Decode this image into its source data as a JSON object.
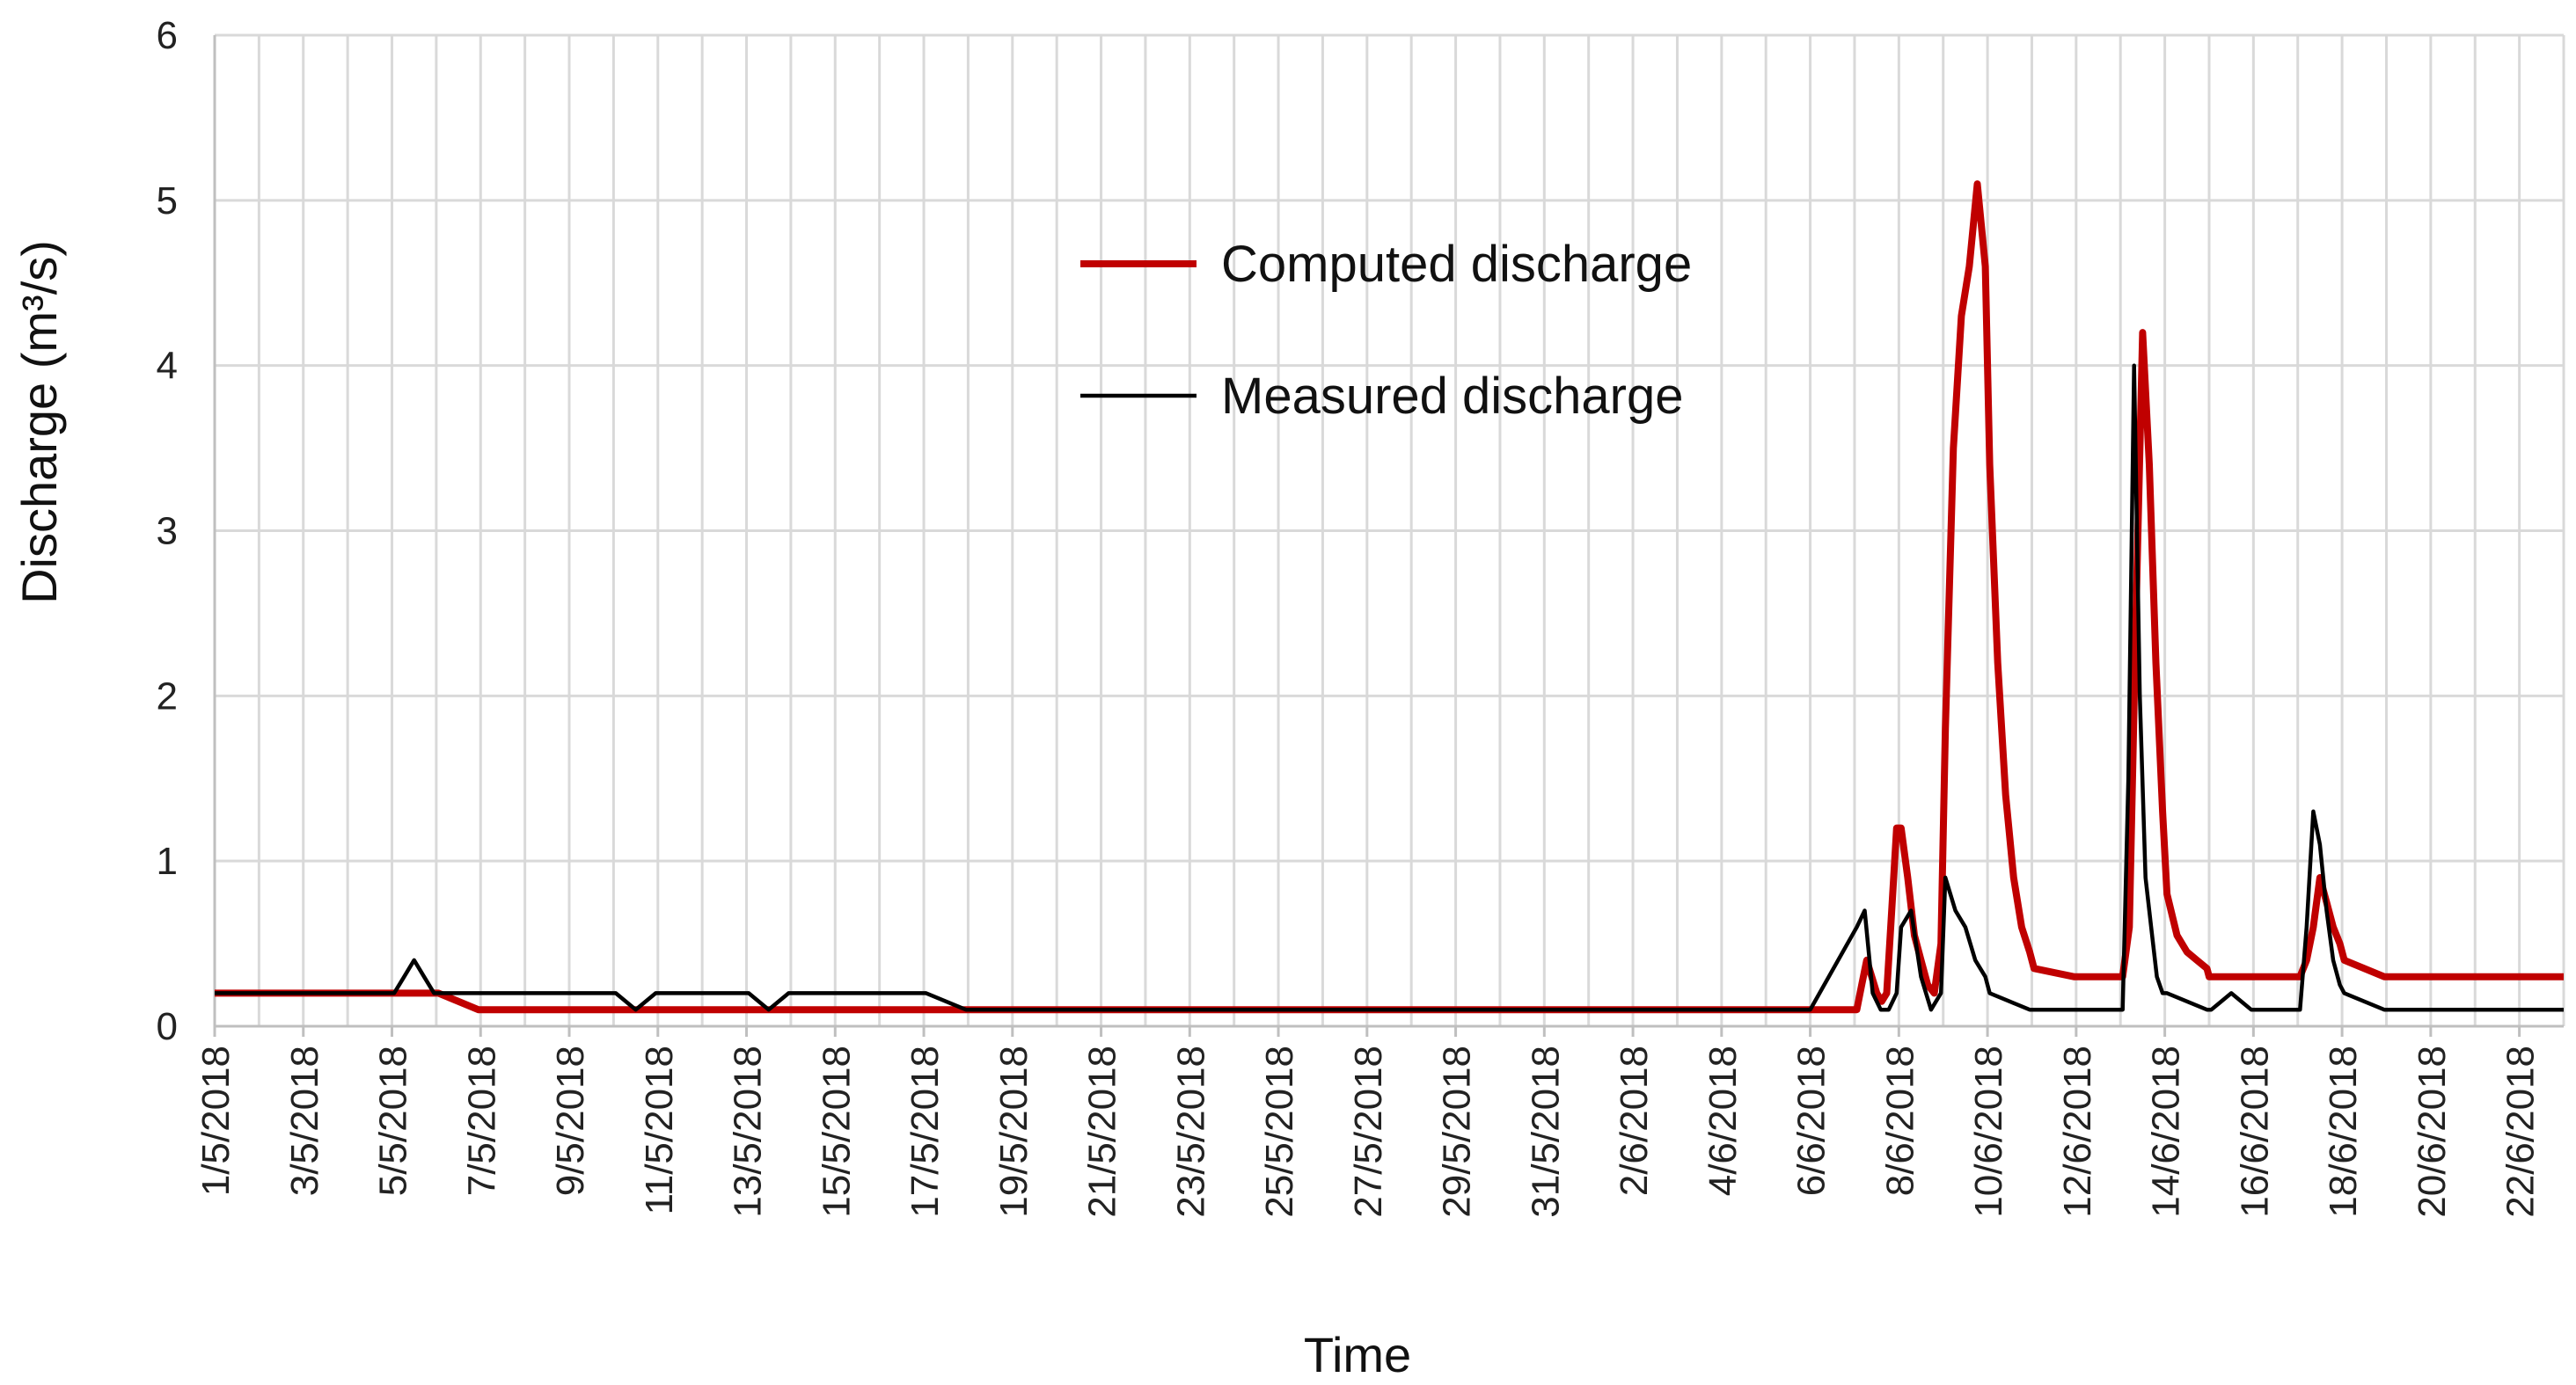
{
  "chart_data": {
    "type": "line",
    "xlabel": "Time",
    "ylabel": "Discharge (m³/s)",
    "ylim": [
      0,
      6
    ],
    "yticks": [
      "0",
      "1",
      "2",
      "3",
      "4",
      "5",
      "6"
    ],
    "xlim": [
      "1/5/2018",
      "23/6/2018"
    ],
    "xtick_labels": [
      "1/5/2018",
      "3/5/2018",
      "5/5/2018",
      "7/5/2018",
      "9/5/2018",
      "11/5/2018",
      "13/5/2018",
      "15/5/2018",
      "17/5/2018",
      "19/5/2018",
      "21/5/2018",
      "23/5/2018",
      "25/5/2018",
      "27/5/2018",
      "29/5/2018",
      "31/5/2018",
      "2/6/2018",
      "4/6/2018",
      "6/6/2018",
      "8/6/2018",
      "10/6/2018",
      "12/6/2018",
      "14/6/2018",
      "16/6/2018",
      "18/6/2018",
      "20/6/2018",
      "22/6/2018"
    ],
    "grid": true,
    "legend_position": "top-center",
    "series": [
      {
        "name": "Computed discharge",
        "color": "#c00000",
        "points": [
          [
            "1/5/2018",
            0.2
          ],
          [
            "6/5/2018",
            0.2
          ],
          [
            "6/5/2018",
            0.1
          ],
          [
            "6/6/2018",
            0.1
          ],
          [
            "7/6/2018",
            0.1
          ],
          [
            "7/6/2018",
            0.25
          ],
          [
            "7/6/2018",
            0.4
          ],
          [
            "7/6/2018",
            0.3
          ],
          [
            "7/6/2018",
            0.2
          ],
          [
            "7/6/2018",
            0.15
          ],
          [
            "7/6/2018",
            0.2
          ],
          [
            "7/6/2018",
            0.7
          ],
          [
            "7/6/2018",
            1.2
          ],
          [
            "8/6/2018",
            1.2
          ],
          [
            "8/6/2018",
            0.9
          ],
          [
            "8/6/2018",
            0.55
          ],
          [
            "8/6/2018",
            0.4
          ],
          [
            "8/6/2018",
            0.25
          ],
          [
            "8/6/2018",
            0.2
          ],
          [
            "8/6/2018",
            0.5
          ],
          [
            "9/6/2018",
            1.8
          ],
          [
            "9/6/2018",
            3.5
          ],
          [
            "9/6/2018",
            4.3
          ],
          [
            "9/6/2018",
            4.6
          ],
          [
            "9/6/2018",
            5.1
          ],
          [
            "9/6/2018",
            4.6
          ],
          [
            "10/6/2018",
            3.4
          ],
          [
            "10/6/2018",
            2.2
          ],
          [
            "10/6/2018",
            1.4
          ],
          [
            "10/6/2018",
            0.9
          ],
          [
            "10/6/2018",
            0.6
          ],
          [
            "10/6/2018",
            0.45
          ],
          [
            "11/6/2018",
            0.35
          ],
          [
            "11/6/2018",
            0.3
          ],
          [
            "12/6/2018",
            0.3
          ],
          [
            "13/6/2018",
            0.3
          ],
          [
            "13/6/2018",
            0.6
          ],
          [
            "13/6/2018",
            2.5
          ],
          [
            "13/6/2018",
            4.2
          ],
          [
            "13/6/2018",
            3.4
          ],
          [
            "13/6/2018",
            2.2
          ],
          [
            "13/6/2018",
            1.3
          ],
          [
            "14/6/2018",
            0.8
          ],
          [
            "14/6/2018",
            0.55
          ],
          [
            "14/6/2018",
            0.45
          ],
          [
            "14/6/2018",
            0.4
          ],
          [
            "14/6/2018",
            0.35
          ],
          [
            "15/6/2018",
            0.3
          ],
          [
            "17/6/2018",
            0.3
          ],
          [
            "17/6/2018",
            0.4
          ],
          [
            "17/6/2018",
            0.6
          ],
          [
            "17/6/2018",
            0.9
          ],
          [
            "17/6/2018",
            0.75
          ],
          [
            "17/6/2018",
            0.6
          ],
          [
            "17/6/2018",
            0.5
          ],
          [
            "18/6/2018",
            0.4
          ],
          [
            "18/6/2018",
            0.3
          ],
          [
            "23/6/2018",
            0.3
          ]
        ]
      },
      {
        "name": "Measured discharge",
        "color": "#000000",
        "points": [
          [
            "1/5/2018",
            0.2
          ],
          [
            "5/5/2018",
            0.2
          ],
          [
            "5/5/2018",
            0.3
          ],
          [
            "5/5/2018",
            0.4
          ],
          [
            "5/5/2018",
            0.3
          ],
          [
            "5/5/2018",
            0.2
          ],
          [
            "10/5/2018",
            0.2
          ],
          [
            "10/5/2018",
            0.1
          ],
          [
            "10/5/2018",
            0.2
          ],
          [
            "13/5/2018",
            0.2
          ],
          [
            "13/5/2018",
            0.1
          ],
          [
            "13/5/2018",
            0.2
          ],
          [
            "17/5/2018",
            0.2
          ],
          [
            "17/5/2018",
            0.1
          ],
          [
            "6/6/2018",
            0.1
          ],
          [
            "7/6/2018",
            0.6
          ],
          [
            "7/6/2018",
            0.7
          ],
          [
            "7/6/2018",
            0.2
          ],
          [
            "7/6/2018",
            0.1
          ],
          [
            "7/6/2018",
            0.1
          ],
          [
            "7/6/2018",
            0.2
          ],
          [
            "8/6/2018",
            0.6
          ],
          [
            "8/6/2018",
            0.7
          ],
          [
            "8/6/2018",
            0.3
          ],
          [
            "8/6/2018",
            0.1
          ],
          [
            "8/6/2018",
            0.2
          ],
          [
            "9/6/2018",
            0.9
          ],
          [
            "9/6/2018",
            0.7
          ],
          [
            "9/6/2018",
            0.6
          ],
          [
            "9/6/2018",
            0.4
          ],
          [
            "9/6/2018",
            0.3
          ],
          [
            "10/6/2018",
            0.2
          ],
          [
            "10/6/2018",
            0.1
          ],
          [
            "13/6/2018",
            0.1
          ],
          [
            "13/6/2018",
            1.5
          ],
          [
            "13/6/2018",
            4.0
          ],
          [
            "13/6/2018",
            2.0
          ],
          [
            "13/6/2018",
            0.9
          ],
          [
            "13/6/2018",
            0.6
          ],
          [
            "13/6/2018",
            0.3
          ],
          [
            "13/6/2018",
            0.2
          ],
          [
            "14/6/2018",
            0.2
          ],
          [
            "14/6/2018",
            0.1
          ],
          [
            "15/6/2018",
            0.1
          ],
          [
            "15/6/2018",
            0.2
          ],
          [
            "15/6/2018",
            0.1
          ],
          [
            "17/6/2018",
            0.1
          ],
          [
            "17/6/2018",
            0.6
          ],
          [
            "17/6/2018",
            1.3
          ],
          [
            "17/6/2018",
            1.1
          ],
          [
            "17/6/2018",
            0.7
          ],
          [
            "17/6/2018",
            0.4
          ],
          [
            "17/6/2018",
            0.25
          ],
          [
            "18/6/2018",
            0.2
          ],
          [
            "18/6/2018",
            0.1
          ],
          [
            "23/6/2018",
            0.1
          ]
        ]
      }
    ]
  }
}
